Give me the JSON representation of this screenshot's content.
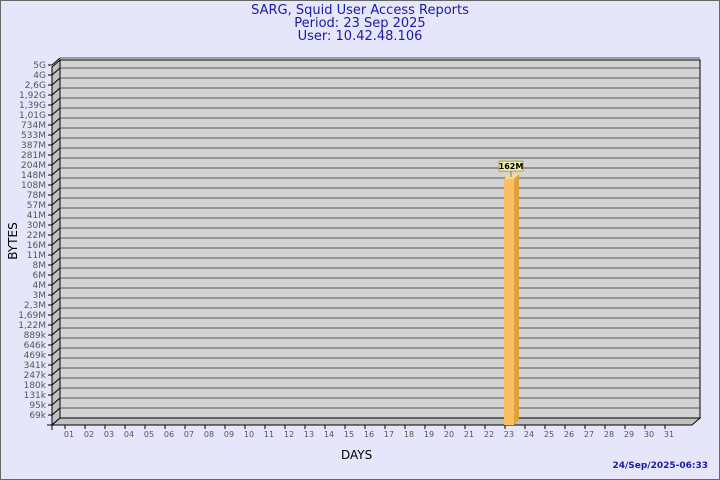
{
  "chart_data": {
    "type": "bar",
    "title": "SARG, Squid User Access Reports",
    "subtitle": [
      "Period: 23 Sep 2025",
      "User: 10.42.48.106"
    ],
    "xlabel": "DAYS",
    "ylabel": "BYTES",
    "y_scale": "log",
    "y_tick_labels": [
      "69k",
      "95k",
      "131k",
      "180k",
      "247k",
      "341k",
      "469k",
      "646k",
      "889k",
      "1,22M",
      "1,69M",
      "2,3M",
      "3M",
      "4M",
      "6M",
      "8M",
      "11M",
      "16M",
      "22M",
      "30M",
      "41M",
      "57M",
      "78M",
      "108M",
      "148M",
      "204M",
      "281M",
      "387M",
      "533M",
      "734M",
      "1,01G",
      "1,39G",
      "1,92G",
      "2,6G",
      "4G",
      "5G"
    ],
    "categories": [
      "01",
      "02",
      "03",
      "04",
      "05",
      "06",
      "07",
      "08",
      "09",
      "10",
      "11",
      "12",
      "13",
      "14",
      "15",
      "16",
      "17",
      "18",
      "19",
      "20",
      "21",
      "22",
      "23",
      "24",
      "25",
      "26",
      "27",
      "28",
      "29",
      "30",
      "31"
    ],
    "values": [
      {
        "day": "23",
        "bytes": 162000000,
        "label": "162M"
      }
    ],
    "grid": true,
    "colors": {
      "bar": "#f8c060",
      "bar_side": "#e0a040",
      "plot": "#d3d3d3",
      "title": "#1a1aa6",
      "background": "#e6e6fa"
    }
  },
  "footer": "24/Sep/2025-06:33"
}
